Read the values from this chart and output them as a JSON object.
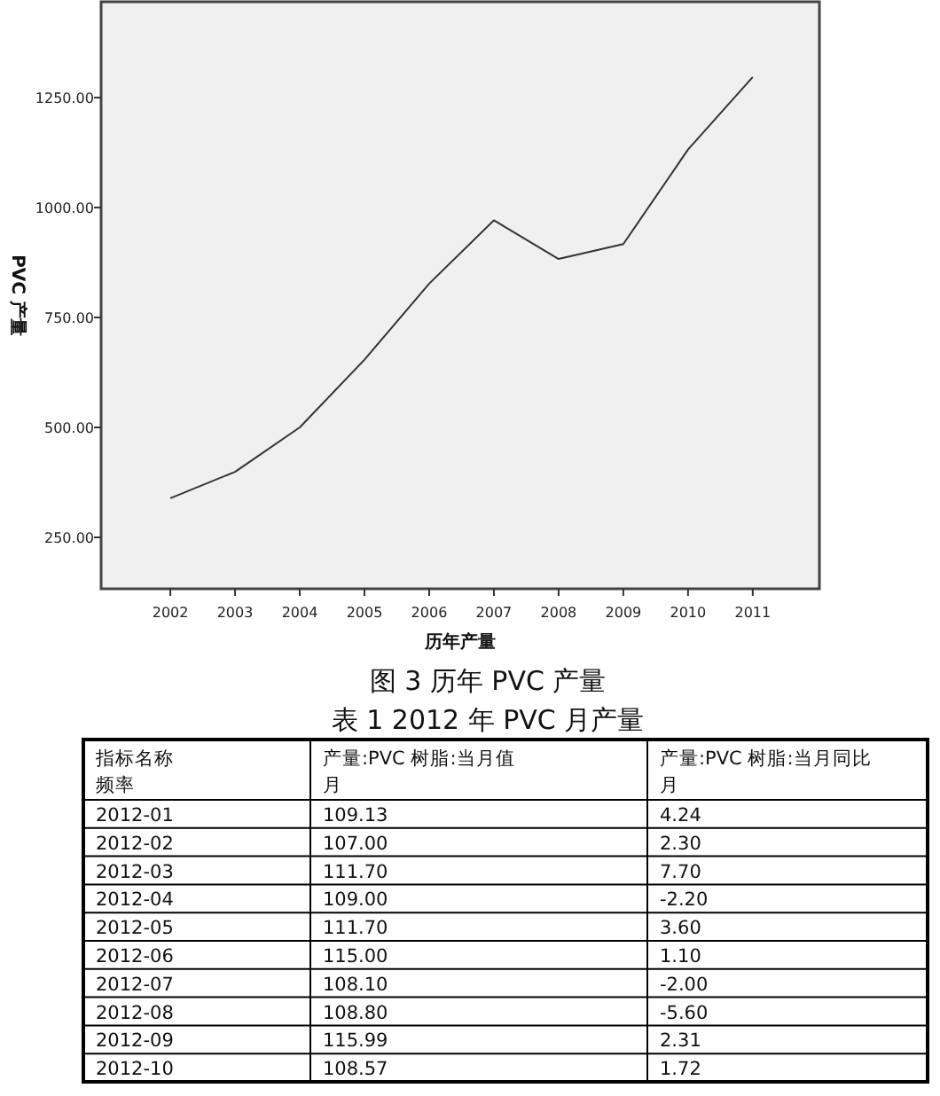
{
  "chart_data": [
    {
      "type": "line",
      "xlabel": "历年产量",
      "ylabel": "PVC 产量",
      "annotations": [
        "图 3 历年 PVC 产量"
      ],
      "categories": [
        "2002",
        "2003",
        "2004",
        "2005",
        "2006",
        "2007",
        "2008",
        "2009",
        "2010",
        "2011"
      ],
      "series": [
        {
          "color": "#333333",
          "values": [
            339,
            399,
            500,
            654,
            827,
            971,
            883,
            917,
            1132,
            1297
          ]
        }
      ],
      "ylim": [
        133,
        1468
      ],
      "yticks": [
        {
          "value": 250,
          "label": "250.00"
        },
        {
          "value": 500,
          "label": "500.00"
        },
        {
          "value": 750,
          "label": "750.00"
        },
        {
          "value": 1000,
          "label": "1000.00"
        },
        {
          "value": 1250,
          "label": "1250.00"
        }
      ],
      "grid": false,
      "marker": "none",
      "line_style": "solid"
    },
    {
      "type": "other",
      "title": "表 1 2012 年 PVC 月产量",
      "annotations": [
        "指标名称",
        "频率",
        "月",
        "月"
      ],
      "categories": [
        "2012-01",
        "2012-02",
        "2012-03",
        "2012-04",
        "2012-05",
        "2012-06",
        "2012-07",
        "2012-08",
        "2012-09",
        "2012-10"
      ],
      "series": [
        {
          "name": "产量:PVC 树脂:当月值",
          "values": [
            109.13,
            107.0,
            111.7,
            109.0,
            111.7,
            115.0,
            108.1,
            108.8,
            115.99,
            108.57
          ],
          "value_labels": [
            "109.13",
            "107.00",
            "111.70",
            "109.00",
            "111.70",
            "115.00",
            "108.10",
            "108.80",
            "115.99",
            "108.57"
          ]
        },
        {
          "name": "产量:PVC 树脂:当月同比",
          "values": [
            4.24,
            2.3,
            7.7,
            -2.2,
            3.6,
            1.1,
            -2.0,
            -5.6,
            2.31,
            1.72
          ],
          "value_labels": [
            "4.24",
            "2.30",
            "7.70",
            "-2.20",
            "3.60",
            "1.10",
            "-2.00",
            "-5.60",
            "2.31",
            "1.72"
          ]
        }
      ]
    }
  ]
}
